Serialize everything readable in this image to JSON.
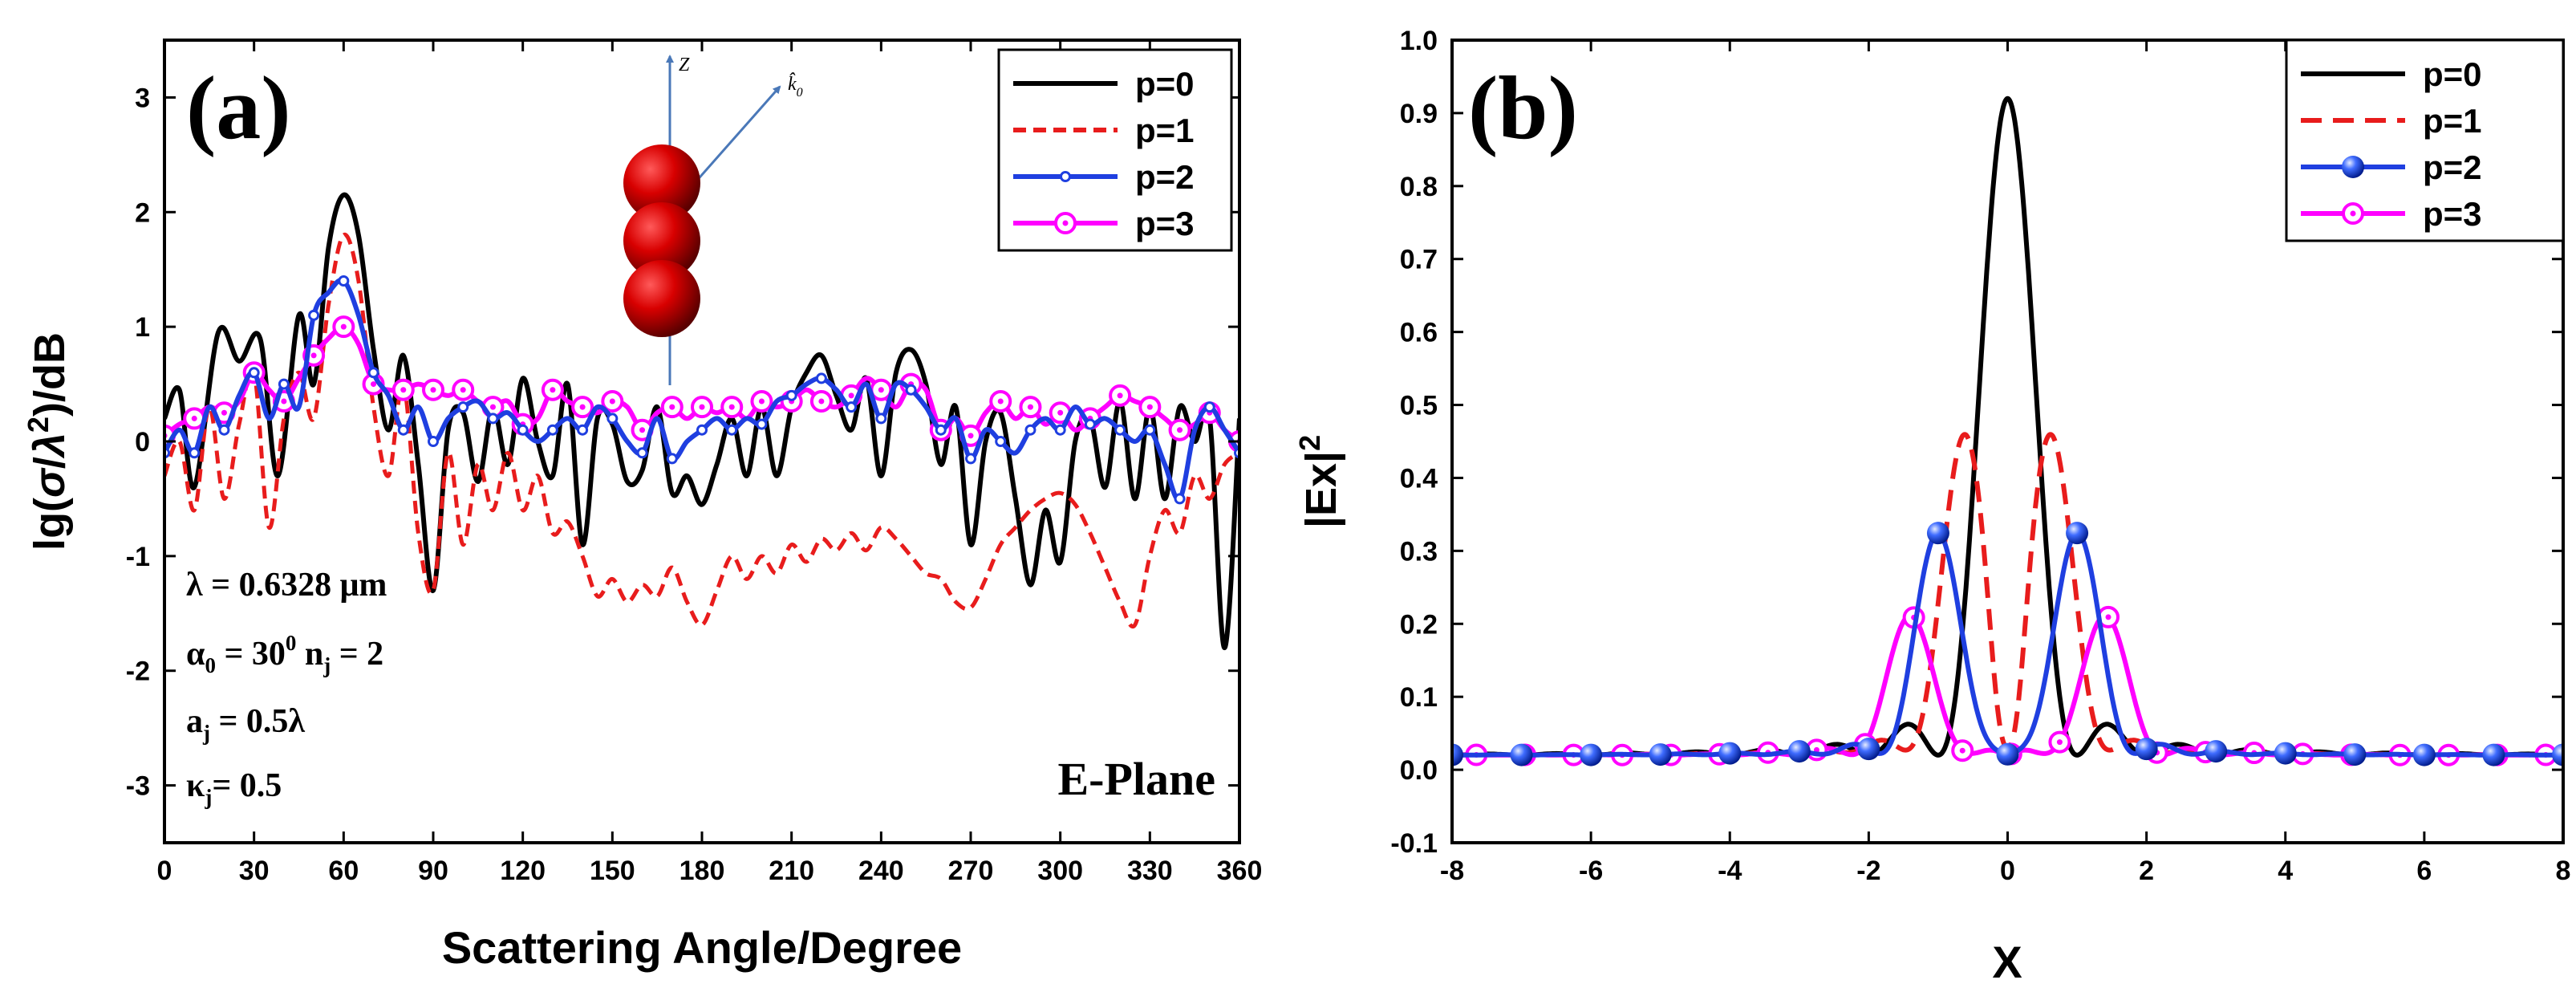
{
  "colors": {
    "p0": "#000000",
    "p1": "#e81c1c",
    "p2": "#1f3fe0",
    "p3": "#ff00ff",
    "axis": "#000000",
    "inset_arrow": "#4a78b8",
    "sphere": "#b80000"
  },
  "panel_a": {
    "label": "(a)",
    "plane_label": "E-Plane",
    "params": {
      "wavelength": "λ = 0.6328 μm",
      "alpha_base": "α",
      "alpha_sub": "0",
      "alpha_mid": " = 30",
      "alpha_sup": "0",
      "n_base": " n",
      "n_sub": "j",
      "n_tail": " = 2",
      "a_base": "a",
      "a_sub": "j",
      "a_tail": " = 0.5λ",
      "kappa_base": "κ",
      "kappa_sub": "j",
      "kappa_tail": "= 0.5"
    },
    "inset": {
      "z_label": "Z",
      "k_label": "k̂",
      "k_sub": "0"
    }
  },
  "panel_b": {
    "label": "(b)"
  },
  "chart_data": [
    {
      "type": "line",
      "title": "(a)",
      "xlabel": "Scattering Angle/Degree",
      "ylabel": "lg(σ/λ²)/dB",
      "xlim": [
        0,
        360
      ],
      "ylim": [
        -3.5,
        3.5
      ],
      "xticks": [
        0,
        30,
        60,
        90,
        120,
        150,
        180,
        210,
        240,
        270,
        300,
        330,
        360
      ],
      "yticks": [
        -3,
        -2,
        -1,
        0,
        1,
        2,
        3
      ],
      "legend": [
        "p=0",
        "p=1",
        "p=2",
        "p=3"
      ],
      "legend_position": "top-right",
      "series": [
        {
          "name": "p=0",
          "style": "solid",
          "x": [
            0,
            5,
            10,
            18,
            25,
            32,
            38,
            45,
            50,
            55,
            60,
            65,
            70,
            75,
            80,
            85,
            90,
            95,
            100,
            105,
            110,
            115,
            120,
            125,
            130,
            135,
            140,
            145,
            150,
            155,
            160,
            165,
            170,
            175,
            180,
            185,
            190,
            195,
            200,
            205,
            210,
            215,
            220,
            225,
            230,
            235,
            240,
            245,
            250,
            255,
            260,
            265,
            270,
            275,
            280,
            285,
            290,
            295,
            300,
            305,
            310,
            315,
            320,
            325,
            330,
            335,
            340,
            345,
            350,
            355,
            360
          ],
          "y": [
            0.2,
            0.45,
            -0.4,
            0.95,
            0.7,
            0.9,
            -0.3,
            1.1,
            0.5,
            1.7,
            2.15,
            1.8,
            0.8,
            0.1,
            0.75,
            -0.2,
            -1.3,
            0.1,
            0.25,
            -0.35,
            0.3,
            -0.2,
            0.55,
            0.0,
            -0.3,
            0.5,
            -0.9,
            0.2,
            0.15,
            -0.35,
            -0.25,
            0.3,
            -0.45,
            -0.3,
            -0.55,
            -0.2,
            0.2,
            -0.3,
            0.3,
            -0.3,
            0.3,
            0.6,
            0.75,
            0.4,
            0.1,
            0.55,
            -0.3,
            0.6,
            0.8,
            0.5,
            -0.2,
            0.3,
            -0.9,
            0.0,
            0.25,
            -0.5,
            -1.25,
            -0.6,
            -1.05,
            0.0,
            0.2,
            -0.4,
            0.35,
            -0.5,
            0.3,
            -0.5,
            0.3,
            0.0,
            0.2,
            -1.8,
            0.2
          ]
        },
        {
          "name": "p=1",
          "style": "dash",
          "x": [
            0,
            5,
            10,
            15,
            20,
            25,
            30,
            35,
            40,
            45,
            50,
            55,
            60,
            65,
            70,
            75,
            80,
            85,
            90,
            95,
            100,
            105,
            110,
            115,
            120,
            125,
            130,
            135,
            140,
            145,
            150,
            155,
            160,
            165,
            170,
            175,
            180,
            185,
            190,
            195,
            200,
            205,
            210,
            215,
            220,
            225,
            230,
            235,
            240,
            245,
            250,
            255,
            260,
            265,
            270,
            275,
            280,
            285,
            290,
            295,
            300,
            305,
            310,
            315,
            320,
            325,
            330,
            335,
            340,
            345,
            350,
            355,
            360
          ],
          "y": [
            -0.3,
            0.0,
            -0.6,
            0.3,
            -0.5,
            0.15,
            0.6,
            -0.75,
            0.2,
            0.6,
            0.2,
            1.2,
            1.8,
            1.4,
            0.3,
            -0.3,
            0.5,
            -0.8,
            -1.3,
            -0.1,
            -0.9,
            -0.2,
            -0.6,
            -0.1,
            -0.6,
            -0.3,
            -0.8,
            -0.7,
            -1.0,
            -1.35,
            -1.2,
            -1.4,
            -1.25,
            -1.35,
            -1.1,
            -1.4,
            -1.6,
            -1.3,
            -1.0,
            -1.2,
            -1.0,
            -1.15,
            -0.9,
            -1.05,
            -0.85,
            -0.95,
            -0.8,
            -0.95,
            -0.75,
            -0.85,
            -1.0,
            -1.15,
            -1.2,
            -1.4,
            -1.45,
            -1.2,
            -0.9,
            -0.75,
            -0.6,
            -0.5,
            -0.45,
            -0.55,
            -0.8,
            -1.1,
            -1.4,
            -1.6,
            -1.0,
            -0.6,
            -0.8,
            -0.3,
            -0.5,
            -0.2,
            -0.1
          ]
        },
        {
          "name": "p=2",
          "style": "solid-marker-dot",
          "x": [
            0,
            5,
            10,
            15,
            20,
            25,
            30,
            35,
            40,
            45,
            50,
            55,
            60,
            65,
            70,
            75,
            80,
            85,
            90,
            95,
            100,
            105,
            110,
            115,
            120,
            125,
            130,
            135,
            140,
            145,
            150,
            155,
            160,
            165,
            170,
            175,
            180,
            185,
            190,
            195,
            200,
            205,
            210,
            215,
            220,
            225,
            230,
            235,
            240,
            245,
            250,
            255,
            260,
            265,
            270,
            275,
            280,
            285,
            290,
            295,
            300,
            305,
            310,
            315,
            320,
            325,
            330,
            335,
            340,
            345,
            350,
            355,
            360
          ],
          "y": [
            -0.1,
            0.1,
            -0.1,
            0.3,
            0.1,
            0.4,
            0.6,
            0.2,
            0.5,
            0.3,
            1.1,
            1.3,
            1.4,
            1.1,
            0.6,
            0.4,
            0.1,
            0.3,
            0.0,
            0.2,
            0.3,
            0.35,
            0.2,
            0.25,
            0.1,
            0.0,
            0.1,
            0.2,
            0.1,
            0.3,
            0.2,
            0.0,
            -0.1,
            0.2,
            -0.15,
            0.0,
            0.1,
            0.2,
            0.1,
            0.2,
            0.15,
            0.35,
            0.4,
            0.5,
            0.55,
            0.45,
            0.3,
            0.5,
            0.2,
            0.5,
            0.45,
            0.3,
            0.1,
            0.2,
            -0.15,
            0.1,
            0.0,
            -0.1,
            0.1,
            0.2,
            0.1,
            0.3,
            0.15,
            0.2,
            0.1,
            0.0,
            0.1,
            -0.2,
            -0.5,
            0.1,
            0.3,
            0.1,
            -0.1
          ]
        },
        {
          "name": "p=3",
          "style": "solid-marker-ring",
          "x": [
            0,
            5,
            10,
            15,
            20,
            25,
            30,
            35,
            40,
            45,
            50,
            55,
            60,
            65,
            70,
            75,
            80,
            85,
            90,
            95,
            100,
            105,
            110,
            115,
            120,
            125,
            130,
            135,
            140,
            145,
            150,
            155,
            160,
            165,
            170,
            175,
            180,
            185,
            190,
            195,
            200,
            205,
            210,
            215,
            220,
            225,
            230,
            235,
            240,
            245,
            250,
            255,
            260,
            265,
            270,
            275,
            280,
            285,
            290,
            295,
            300,
            305,
            310,
            315,
            320,
            325,
            330,
            335,
            340,
            345,
            350,
            355,
            360
          ],
          "y": [
            0.05,
            0.15,
            0.2,
            0.3,
            0.25,
            0.35,
            0.6,
            0.45,
            0.35,
            0.55,
            0.75,
            0.9,
            1.0,
            0.85,
            0.5,
            0.45,
            0.45,
            0.5,
            0.45,
            0.4,
            0.45,
            0.35,
            0.3,
            0.35,
            0.15,
            0.2,
            0.45,
            0.35,
            0.3,
            0.25,
            0.35,
            0.3,
            0.1,
            0.25,
            0.3,
            0.2,
            0.3,
            0.25,
            0.3,
            0.2,
            0.35,
            0.3,
            0.35,
            0.45,
            0.35,
            0.3,
            0.4,
            0.55,
            0.45,
            0.3,
            0.5,
            0.45,
            0.1,
            0.2,
            0.05,
            0.25,
            0.35,
            0.2,
            0.3,
            0.15,
            0.25,
            0.1,
            0.2,
            0.3,
            0.4,
            0.35,
            0.3,
            0.2,
            0.1,
            0.15,
            0.25,
            0.1,
            0.0
          ]
        }
      ]
    },
    {
      "type": "line",
      "title": "(b)",
      "xlabel": "X",
      "ylabel": "|Ex|²",
      "xlim": [
        -8,
        8
      ],
      "ylim": [
        -0.1,
        1.0
      ],
      "xticks": [
        -8,
        -6,
        -4,
        -2,
        0,
        2,
        4,
        6,
        8
      ],
      "yticks": [
        -0.1,
        0.0,
        0.1,
        0.2,
        0.3,
        0.4,
        0.5,
        0.6,
        0.7,
        0.8,
        0.9,
        1.0
      ],
      "legend": [
        "p=0",
        "p=1",
        "p=2",
        "p=3"
      ],
      "legend_position": "top-right",
      "series": [
        {
          "name": "p=0",
          "style": "solid",
          "peak": 0.92,
          "x_peak": 0
        },
        {
          "name": "p=1",
          "style": "dash",
          "peaks": [
            {
              "x": -0.62,
              "y": 0.44
            },
            {
              "x": 0.62,
              "y": 0.44
            }
          ]
        },
        {
          "name": "p=2",
          "style": "solid-marker-ball",
          "peaks": [
            {
              "x": -1.0,
              "y": 0.32
            },
            {
              "x": 1.0,
              "y": 0.32
            }
          ]
        },
        {
          "name": "p=3",
          "style": "solid-marker-ring",
          "peaks": [
            {
              "x": -1.4,
              "y": 0.21
            },
            {
              "x": 1.4,
              "y": 0.21
            }
          ]
        }
      ]
    }
  ]
}
